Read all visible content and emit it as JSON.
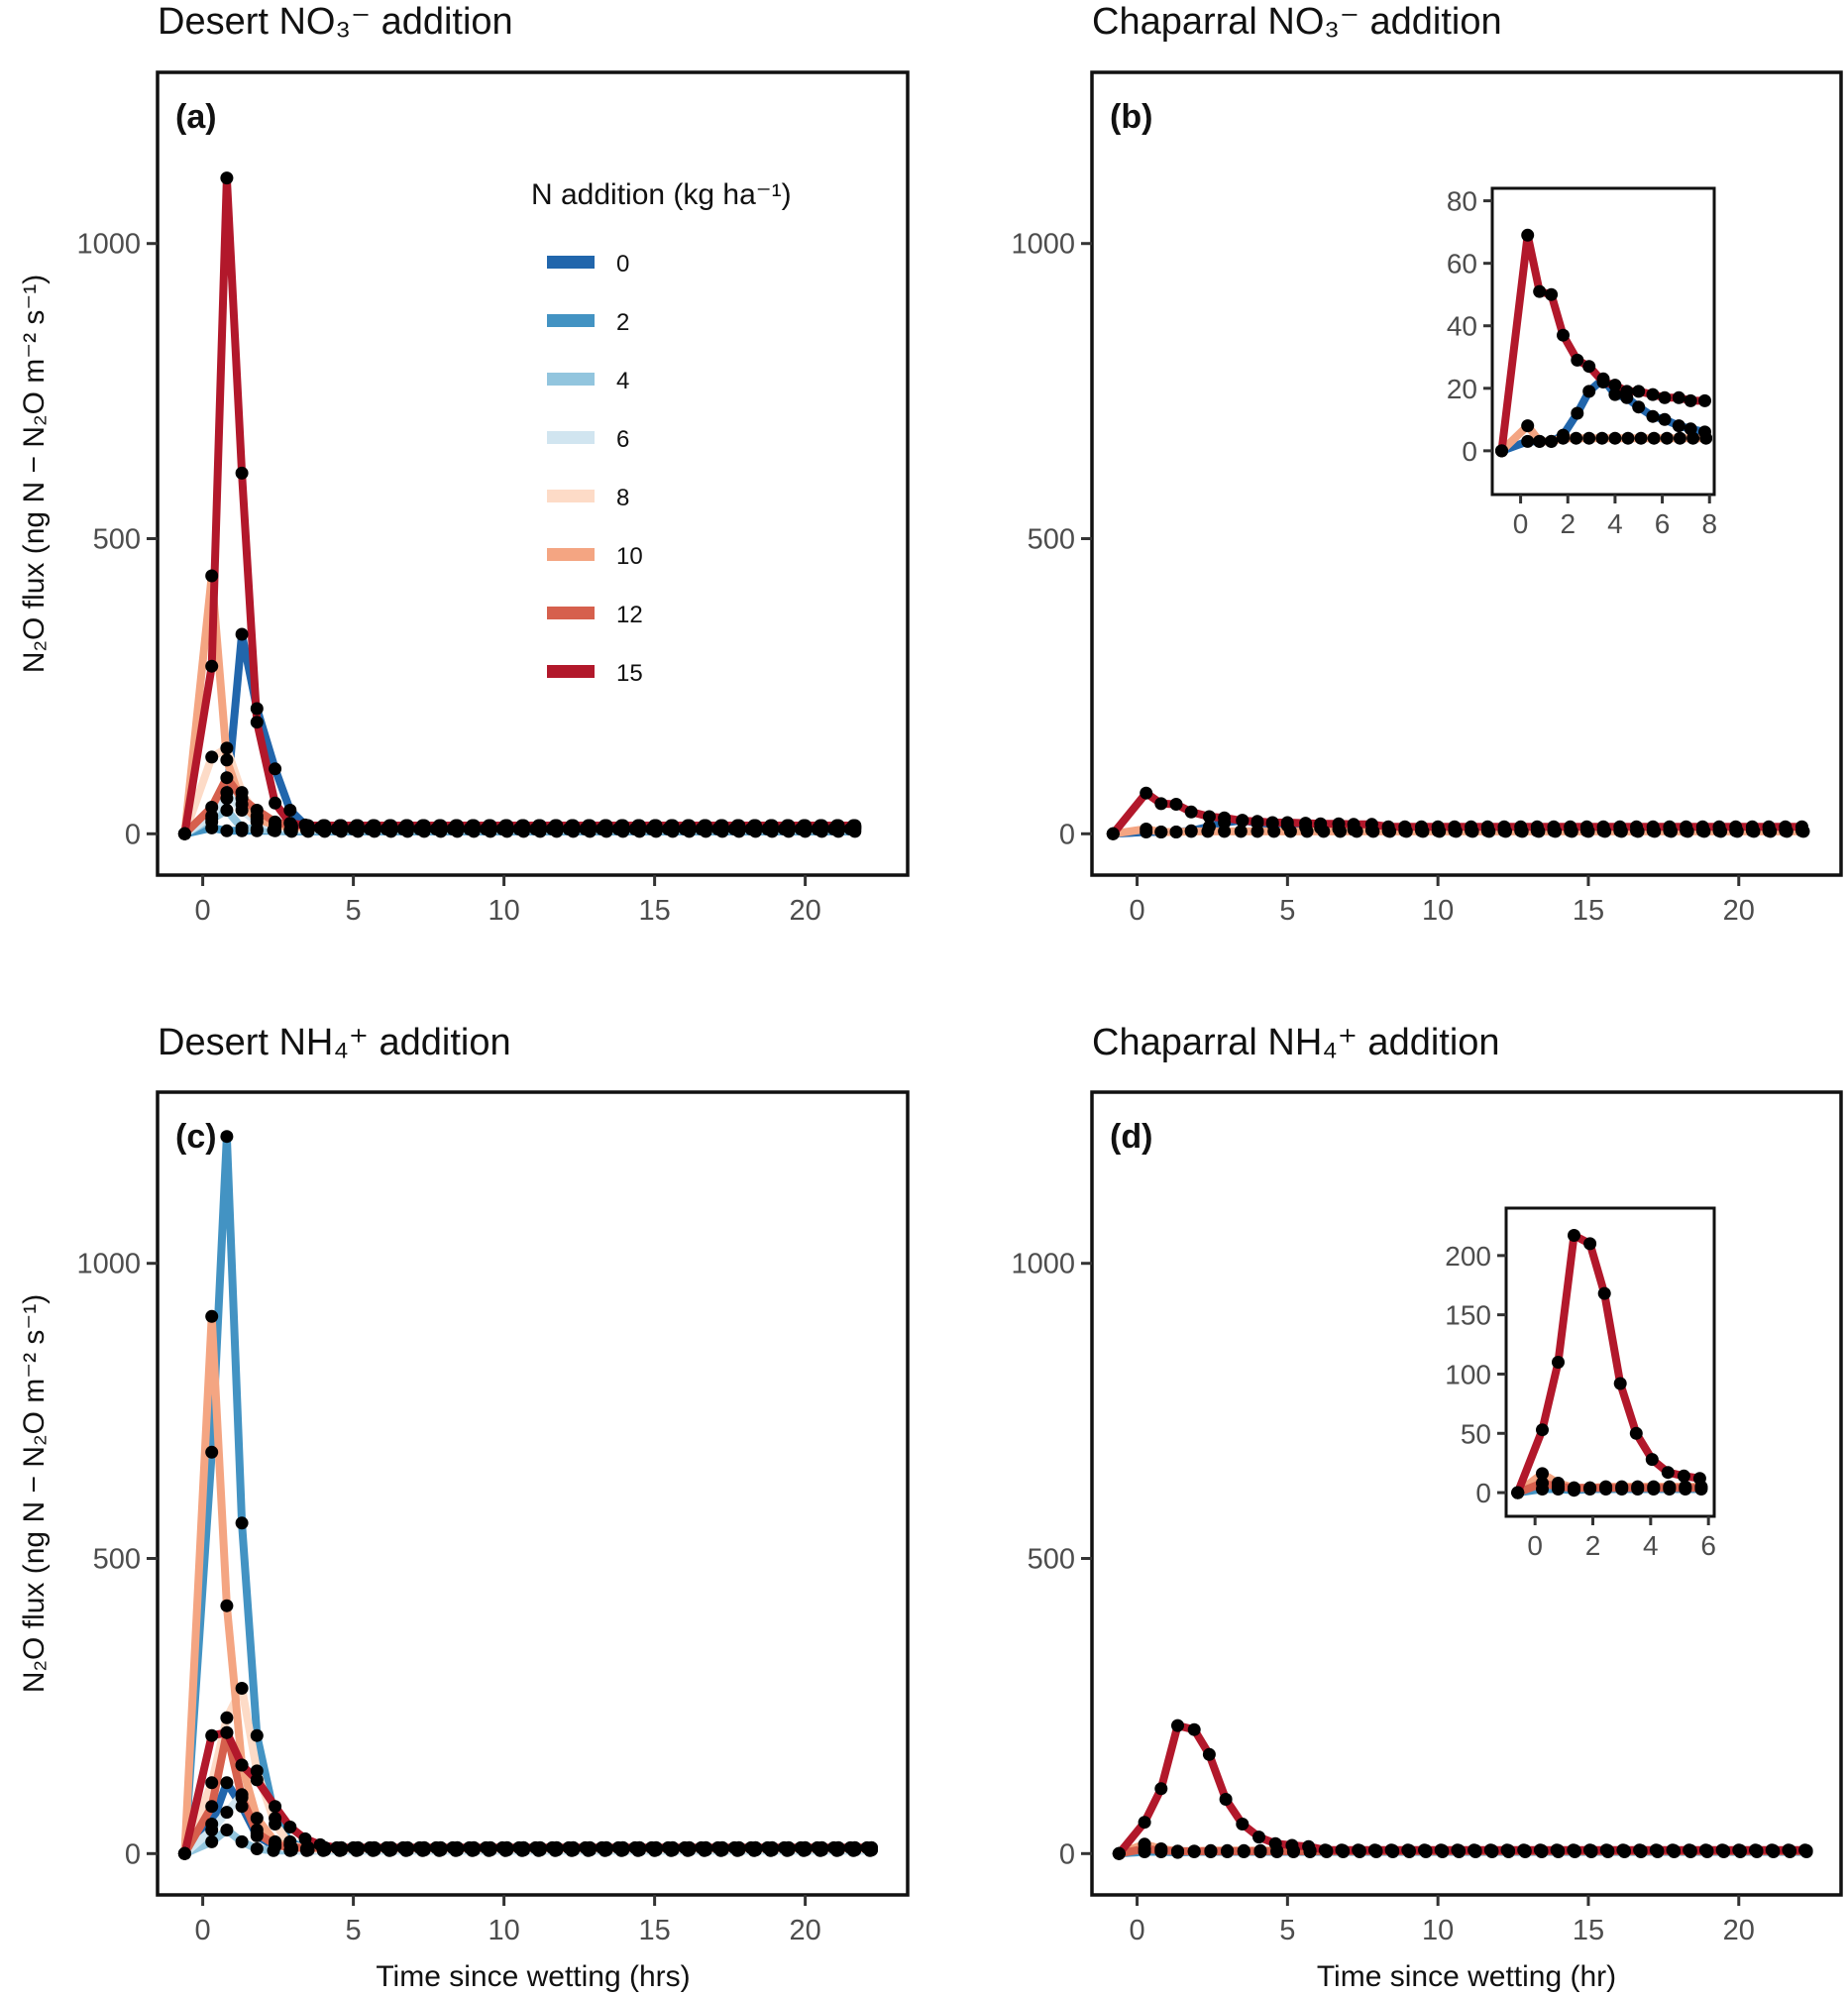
{
  "figure": {
    "y_axis_title": "N₂O flux  (ng N − N₂O m⁻² s⁻¹)",
    "legend": {
      "title": "N addition (kg ha⁻¹)",
      "entries": [
        {
          "label": "0",
          "color": "#2166ac"
        },
        {
          "label": "2",
          "color": "#4393c3"
        },
        {
          "label": "4",
          "color": "#92c5de"
        },
        {
          "label": "6",
          "color": "#d1e5f0"
        },
        {
          "label": "8",
          "color": "#fddbc7"
        },
        {
          "label": "10",
          "color": "#f4a582"
        },
        {
          "label": "12",
          "color": "#d6604d"
        },
        {
          "label": "15",
          "color": "#b2182b"
        }
      ]
    }
  },
  "chart_data": [
    {
      "id": "a",
      "type": "line",
      "title": "Desert NO₃⁻ addition",
      "panel_label": "(a)",
      "xlabel": "",
      "ylabel": "N₂O flux  (ng N − N₂O m⁻² s⁻¹)",
      "xlim": [
        -1.5,
        23.4
      ],
      "ylim": [
        -70,
        1290
      ],
      "xticks": [
        "0",
        "5",
        "10",
        "15",
        "20"
      ],
      "yticks": [
        "0",
        "500",
        "1000"
      ],
      "grid": false,
      "legend_position": "top-right",
      "tail_x_end": 22,
      "series": [
        {
          "name": "0",
          "points": [
            [
              -0.6,
              0
            ],
            [
              0.3,
              20
            ],
            [
              0.8,
              60
            ],
            [
              1.3,
              338
            ],
            [
              1.8,
              212
            ],
            [
              2.4,
              110
            ],
            [
              2.9,
              40
            ],
            [
              3.4,
              15
            ],
            [
              3.9,
              10
            ]
          ],
          "tail": 8
        },
        {
          "name": "2",
          "points": [
            [
              -0.6,
              0
            ],
            [
              0.3,
              10
            ],
            [
              0.8,
              5
            ],
            [
              1.3,
              5
            ],
            [
              1.8,
              5
            ],
            [
              2.4,
              5
            ]
          ],
          "tail": 4
        },
        {
          "name": "4",
          "points": [
            [
              -0.6,
              0
            ],
            [
              0.3,
              25
            ],
            [
              0.8,
              40
            ],
            [
              1.3,
              10
            ],
            [
              1.8,
              8
            ]
          ],
          "tail": 6
        },
        {
          "name": "6",
          "points": [
            [
              -0.6,
              0
            ],
            [
              0.3,
              30
            ],
            [
              0.8,
              70
            ],
            [
              1.3,
              40
            ],
            [
              1.8,
              20
            ],
            [
              2.4,
              12
            ]
          ],
          "tail": 8
        },
        {
          "name": "8",
          "points": [
            [
              -0.6,
              0
            ],
            [
              0.3,
              130
            ],
            [
              0.8,
              145
            ],
            [
              1.3,
              70
            ],
            [
              1.8,
              30
            ],
            [
              2.4,
              15
            ]
          ],
          "tail": 10
        },
        {
          "name": "10",
          "points": [
            [
              -0.6,
              0
            ],
            [
              0.3,
              437
            ],
            [
              0.8,
              125
            ],
            [
              1.3,
              50
            ],
            [
              1.8,
              25
            ],
            [
              2.4,
              15
            ]
          ],
          "tail": 12
        },
        {
          "name": "12",
          "points": [
            [
              -0.6,
              0
            ],
            [
              0.3,
              45
            ],
            [
              0.8,
              95
            ],
            [
              1.3,
              60
            ],
            [
              1.8,
              40
            ],
            [
              2.4,
              20
            ]
          ],
          "tail": 14
        },
        {
          "name": "15",
          "points": [
            [
              -0.6,
              0
            ],
            [
              0.3,
              284
            ],
            [
              0.8,
              1111
            ],
            [
              1.3,
              611
            ],
            [
              1.8,
              189
            ],
            [
              2.4,
              52
            ],
            [
              2.9,
              18
            ]
          ],
          "tail": 14
        }
      ]
    },
    {
      "id": "b",
      "type": "line",
      "title": "Chaparral NO₃⁻ addition",
      "panel_label": "(b)",
      "xlabel": "",
      "ylabel": "",
      "xlim": [
        -1.5,
        23.4
      ],
      "ylim": [
        -70,
        1290
      ],
      "xticks": [
        "0",
        "5",
        "10",
        "15",
        "20"
      ],
      "yticks": [
        "0",
        "500",
        "1000"
      ],
      "grid": false,
      "tail_x_end": 22.4,
      "series": [
        {
          "name": "0",
          "points": [
            [
              -0.8,
              0
            ],
            [
              0.3,
              3
            ],
            [
              0.8,
              3
            ],
            [
              1.3,
              3
            ],
            [
              1.8,
              5
            ],
            [
              2.4,
              12
            ],
            [
              2.9,
              19
            ],
            [
              3.5,
              23
            ],
            [
              4.0,
              18
            ],
            [
              4.5,
              17
            ],
            [
              5.0,
              14
            ],
            [
              5.6,
              11
            ],
            [
              6.1,
              10
            ],
            [
              6.7,
              8
            ],
            [
              7.2,
              7
            ],
            [
              7.8,
              6
            ]
          ],
          "tail": 5
        },
        {
          "name": "10",
          "points": [
            [
              -0.8,
              0
            ],
            [
              0.3,
              8
            ],
            [
              0.8,
              3
            ],
            [
              1.3,
              3
            ],
            [
              1.8,
              4
            ]
          ],
          "tail": 4
        },
        {
          "name": "15",
          "points": [
            [
              -0.8,
              0
            ],
            [
              0.3,
              69
            ],
            [
              0.8,
              51
            ],
            [
              1.3,
              50
            ],
            [
              1.8,
              37
            ],
            [
              2.4,
              29
            ],
            [
              2.9,
              27
            ],
            [
              3.5,
              22
            ],
            [
              4.0,
              21
            ],
            [
              4.5,
              19
            ],
            [
              5.0,
              19
            ],
            [
              5.6,
              18
            ],
            [
              6.1,
              17
            ],
            [
              6.7,
              17
            ],
            [
              7.2,
              16
            ],
            [
              7.8,
              16
            ]
          ],
          "tail": 12
        }
      ],
      "inset": {
        "xlim": [
          -1.2,
          8.2
        ],
        "ylim": [
          -14,
          84
        ],
        "xticks": [
          "0",
          "2",
          "4",
          "6",
          "8"
        ],
        "yticks": [
          "0",
          "20",
          "40",
          "60",
          "80"
        ]
      }
    },
    {
      "id": "c",
      "type": "line",
      "title": "Desert NH₄⁺ addition",
      "panel_label": "(c)",
      "xlabel": "Time since wetting (hrs)",
      "ylabel": "N₂O flux  (ng N − N₂O m⁻² s⁻¹)",
      "xlim": [
        -1.5,
        23.4
      ],
      "ylim": [
        -70,
        1290
      ],
      "xticks": [
        "0",
        "5",
        "10",
        "15",
        "20"
      ],
      "yticks": [
        "0",
        "500",
        "1000"
      ],
      "grid": false,
      "tail_x_end": 22.4,
      "series": [
        {
          "name": "0",
          "points": [
            [
              -0.6,
              0
            ],
            [
              0.3,
              50
            ],
            [
              0.8,
              120
            ],
            [
              1.3,
              80
            ],
            [
              1.8,
              30
            ],
            [
              2.4,
              12
            ]
          ],
          "tail": 6
        },
        {
          "name": "2",
          "points": [
            [
              -0.6,
              0
            ],
            [
              0.3,
              680
            ],
            [
              0.8,
              1215
            ],
            [
              1.3,
              560
            ],
            [
              1.8,
              200
            ],
            [
              2.4,
              60
            ],
            [
              2.9,
              20
            ]
          ],
          "tail": 8
        },
        {
          "name": "4",
          "points": [
            [
              -0.6,
              0
            ],
            [
              0.3,
              20
            ],
            [
              0.8,
              40
            ],
            [
              1.3,
              20
            ],
            [
              1.8,
              8
            ]
          ],
          "tail": 5
        },
        {
          "name": "6",
          "points": [
            [
              -0.6,
              0
            ],
            [
              0.3,
              40
            ],
            [
              0.8,
              70
            ],
            [
              1.3,
              100
            ],
            [
              1.8,
              40
            ],
            [
              2.4,
              15
            ]
          ],
          "tail": 6
        },
        {
          "name": "8",
          "points": [
            [
              -0.6,
              0
            ],
            [
              0.3,
              120
            ],
            [
              0.8,
              230
            ],
            [
              1.3,
              280
            ],
            [
              1.8,
              140
            ],
            [
              2.4,
              50
            ],
            [
              2.9,
              15
            ]
          ],
          "tail": 8
        },
        {
          "name": "10",
          "points": [
            [
              -0.6,
              0
            ],
            [
              0.3,
              910
            ],
            [
              0.8,
              420
            ],
            [
              1.3,
              150
            ],
            [
              1.8,
              60
            ],
            [
              2.4,
              20
            ]
          ],
          "tail": 10
        },
        {
          "name": "12",
          "points": [
            [
              -0.6,
              0
            ],
            [
              0.3,
              80
            ],
            [
              0.8,
              205
            ],
            [
              1.3,
              95
            ],
            [
              1.8,
              35
            ],
            [
              2.4,
              15
            ]
          ],
          "tail": 10
        },
        {
          "name": "15",
          "points": [
            [
              -0.6,
              0
            ],
            [
              0.3,
              200
            ],
            [
              0.8,
              205
            ],
            [
              1.3,
              150
            ],
            [
              1.8,
              125
            ],
            [
              2.4,
              80
            ],
            [
              2.9,
              45
            ],
            [
              3.4,
              25
            ],
            [
              3.9,
              15
            ]
          ],
          "tail": 10
        }
      ]
    },
    {
      "id": "d",
      "type": "line",
      "title": "Chaparral NH₄⁺ addition",
      "panel_label": "(d)",
      "xlabel": "Time since wetting (hr)",
      "ylabel": "",
      "xlim": [
        -1.5,
        23.4
      ],
      "ylim": [
        -70,
        1290
      ],
      "xticks": [
        "0",
        "5",
        "10",
        "15",
        "20"
      ],
      "yticks": [
        "0",
        "500",
        "1000"
      ],
      "grid": false,
      "tail_x_end": 22.4,
      "series": [
        {
          "name": "2",
          "points": [
            [
              -0.6,
              0
            ],
            [
              0.25,
              3
            ],
            [
              0.8,
              3
            ],
            [
              1.35,
              2
            ],
            [
              1.9,
              3
            ]
          ],
          "tail": 3
        },
        {
          "name": "10",
          "points": [
            [
              -0.6,
              0
            ],
            [
              0.25,
              16
            ],
            [
              0.8,
              8
            ],
            [
              1.35,
              4
            ],
            [
              1.9,
              4
            ]
          ],
          "tail": 5
        },
        {
          "name": "12",
          "points": [
            [
              -0.6,
              0
            ],
            [
              0.25,
              8
            ],
            [
              0.8,
              5
            ],
            [
              1.35,
              4
            ],
            [
              1.9,
              4
            ]
          ],
          "tail": 4
        },
        {
          "name": "15",
          "points": [
            [
              -0.6,
              0
            ],
            [
              0.25,
              53
            ],
            [
              0.8,
              110
            ],
            [
              1.35,
              217
            ],
            [
              1.9,
              210
            ],
            [
              2.4,
              168
            ],
            [
              2.95,
              92
            ],
            [
              3.5,
              50
            ],
            [
              4.05,
              28
            ],
            [
              4.6,
              17
            ],
            [
              5.15,
              14
            ],
            [
              5.7,
              12
            ]
          ],
          "tail": 6
        }
      ],
      "inset": {
        "xlim": [
          -1.0,
          6.2
        ],
        "ylim": [
          -20,
          240
        ],
        "xticks": [
          "0",
          "2",
          "4",
          "6"
        ],
        "yticks": [
          "0",
          "50",
          "100",
          "150",
          "200"
        ]
      }
    }
  ]
}
